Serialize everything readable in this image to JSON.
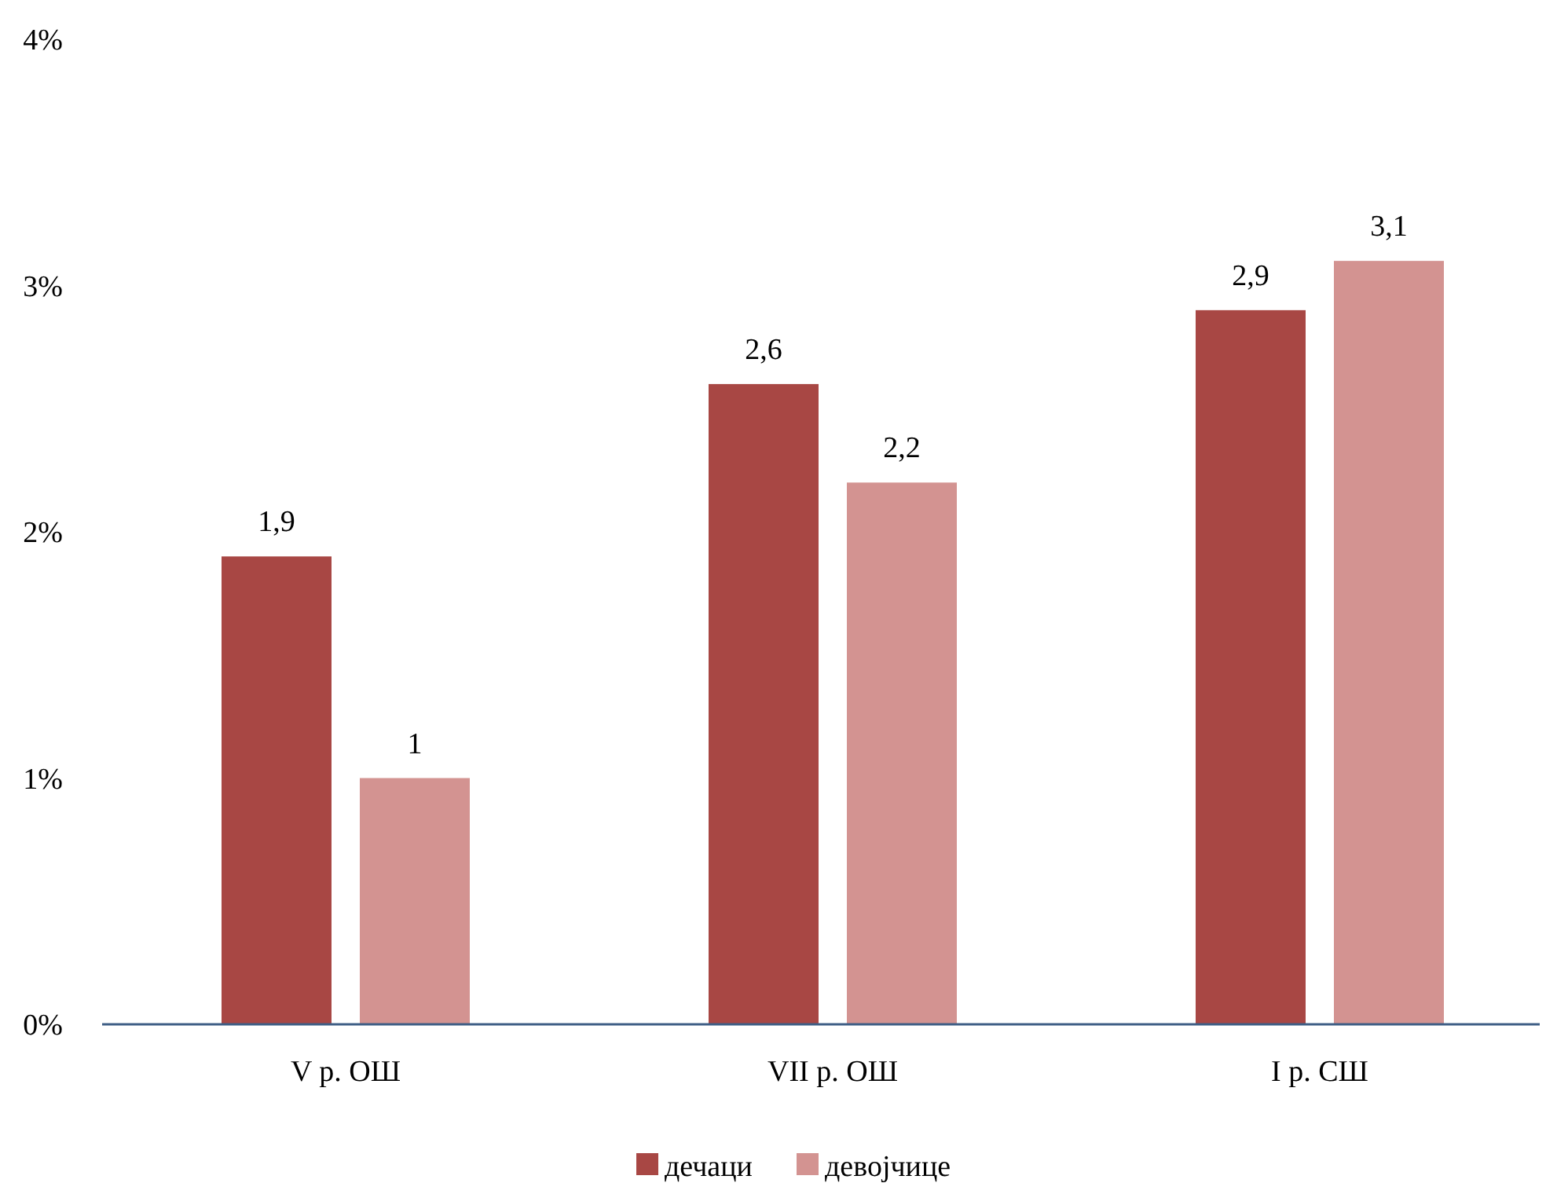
{
  "chart_data": {
    "type": "bar",
    "categories": [
      "V р. ОШ",
      "VII р. ОШ",
      "I р. СШ"
    ],
    "series": [
      {
        "name": "дечаци",
        "color": "#a84744",
        "values": [
          1.9,
          2.6,
          2.9
        ],
        "value_labels": [
          "1,9",
          "2,6",
          "2,9"
        ]
      },
      {
        "name": "девојчице",
        "color": "#d39391",
        "values": [
          1,
          2.2,
          3.1
        ],
        "value_labels": [
          "1",
          "2,2",
          "3,1"
        ]
      }
    ],
    "ylim": [
      0,
      4
    ],
    "yticks": [
      {
        "value": 0,
        "label": "0%"
      },
      {
        "value": 1,
        "label": "1%"
      },
      {
        "value": 2,
        "label": "2%"
      },
      {
        "value": 3,
        "label": "3%"
      },
      {
        "value": 4,
        "label": "4%"
      }
    ],
    "grid": false,
    "legend": "bottom"
  }
}
